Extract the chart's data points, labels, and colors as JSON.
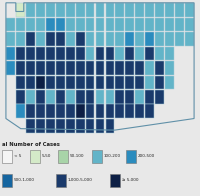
{
  "legend_title": "al Number of Cases",
  "legend_labels": [
    "< 5",
    "5-50",
    "50-100",
    "100-200",
    "200-500",
    "500-1,000",
    "1,000-5,000",
    "≥ 5,000"
  ],
  "legend_colors": [
    "#f5f5f5",
    "#d4eac8",
    "#a8d4a8",
    "#62b4c8",
    "#2b8cbe",
    "#1565a0",
    "#1a3a6b",
    "#0d1f45"
  ],
  "map_bg": "#c8dff0",
  "border_color": "#8ab8cc",
  "fig_bg": "#e8e8e8",
  "figsize": [
    2.0,
    2.0
  ],
  "dpi": 100,
  "town_grid": [
    [
      "#62b4c8",
      "#d4eac8",
      "#62b4c8",
      "#62b4c8",
      "#62b4c8",
      "#62b4c8",
      "#62b4c8",
      "#62b4c8",
      "#62b4c8",
      "#62b4c8",
      "#62b4c8",
      "#62b4c8",
      "#62b4c8",
      "#62b4c8",
      "#62b4c8",
      "#62b4c8",
      "#62b4c8",
      "#62b4c8",
      "#62b4c8"
    ],
    [
      "#62b4c8",
      "#62b4c8",
      "#62b4c8",
      "#62b4c8",
      "#2b8cbe",
      "#2b8cbe",
      "#62b4c8",
      "#62b4c8",
      "#62b4c8",
      "#62b4c8",
      "#62b4c8",
      "#62b4c8",
      "#62b4c8",
      "#62b4c8",
      "#62b4c8",
      "#62b4c8",
      "#62b4c8",
      "#62b4c8",
      "#62b4c8"
    ],
    [
      "#62b4c8",
      "#62b4c8",
      "#1a3a6b",
      "#62b4c8",
      "#1a3a6b",
      "#1a3a6b",
      "#62b4c8",
      "#1a3a6b",
      "#62b4c8",
      "#62b4c8",
      "#62b4c8",
      "#62b4c8",
      "#2b8cbe",
      "#62b4c8",
      "#2b8cbe",
      "#62b4c8",
      "#62b4c8",
      "#62b4c8",
      "#62b4c8"
    ],
    [
      "#2b8cbe",
      "#1a3a6b",
      "#1a3a6b",
      "#1a3a6b",
      "#1a3a6b",
      "#1a3a6b",
      "#1a3a6b",
      "#1a3a6b",
      "#62b4c8",
      "#1a3a6b",
      "#1a3a6b",
      "#62b4c8",
      "#1a3a6b",
      "#62b4c8",
      "#1a3a6b",
      "#62b4c8",
      "#62b4c8",
      "#62b4c8",
      "#62b4c8"
    ],
    [
      "#2b8cbe",
      "#1a3a6b",
      "#1a3a6b",
      "#1a3a6b",
      "#1a3a6b",
      "#1a3a6b",
      "#1a3a6b",
      "#1a3a6b",
      "#1a3a6b",
      "#1a3a6b",
      "#1a3a6b",
      "#1a3a6b",
      "#1a3a6b",
      "#1a3a6b",
      "#62b4c8",
      "#1a3a6b",
      "#62b4c8",
      "#62b4c8",
      "#62b4c8"
    ],
    [
      "#62b4c8",
      "#1a3a6b",
      "#1a3a6b",
      "#0d1f45",
      "#1a3a6b",
      "#1a3a6b",
      "#1a3a6b",
      "#1a3a6b",
      "#1a3a6b",
      "#1a3a6b",
      "#1a3a6b",
      "#1a3a6b",
      "#1a3a6b",
      "#1a3a6b",
      "#62b4c8",
      "#1a3a6b",
      "#62b4c8",
      "#62b4c8",
      "#62b4c8"
    ],
    [
      "#1a3a6b",
      "#1a3a6b",
      "#62b4c8",
      "#1a3a6b",
      "#62b4c8",
      "#1a3a6b",
      "#62b4c8",
      "#1a3a6b",
      "#1a3a6b",
      "#62b4c8",
      "#62b4c8",
      "#1a3a6b",
      "#1a3a6b",
      "#62b4c8",
      "#1a3a6b",
      "#1a3a6b",
      "#62b4c8",
      "#62b4c8",
      "#62b4c8"
    ],
    [
      "#1a3a6b",
      "#2b8cbe",
      "#1a3a6b",
      "#1a3a6b",
      "#1a3a6b",
      "#1a3a6b",
      "#1a3a6b",
      "#0d1f45",
      "#1a3a6b",
      "#1a3a6b",
      "#1a3a6b",
      "#1a3a6b",
      "#1a3a6b",
      "#1a3a6b",
      "#1a3a6b",
      "#1a3a6b",
      "#62b4c8",
      "#62b4c8",
      "#62b4c8"
    ],
    [
      "#1a3a6b",
      "#1a3a6b",
      "#1a3a6b",
      "#1a3a6b",
      "#1a3a6b",
      "#1a3a6b",
      "#1a3a6b",
      "#1a3a6b",
      "#1a3a6b",
      "#1a3a6b",
      "#1a3a6b",
      "#62b4c8",
      "#62b4c8",
      "#62b4c8",
      "#62b4c8",
      "#62b4c8",
      "#62b4c8",
      "#62b4c8",
      "#62b4c8"
    ]
  ],
  "ct_mask": [
    [
      0,
      1,
      1,
      1,
      1,
      1,
      1,
      1,
      1,
      1,
      1,
      1,
      1,
      1,
      1,
      1,
      1,
      1,
      1
    ],
    [
      1,
      1,
      1,
      1,
      1,
      1,
      1,
      1,
      1,
      1,
      1,
      1,
      1,
      1,
      1,
      1,
      1,
      1,
      1
    ],
    [
      1,
      1,
      1,
      1,
      1,
      1,
      1,
      1,
      1,
      1,
      1,
      1,
      1,
      1,
      1,
      1,
      1,
      1,
      1
    ],
    [
      1,
      1,
      1,
      1,
      1,
      1,
      1,
      1,
      1,
      1,
      1,
      1,
      1,
      1,
      1,
      1,
      1,
      0,
      0
    ],
    [
      1,
      1,
      1,
      1,
      1,
      1,
      1,
      1,
      1,
      1,
      1,
      1,
      1,
      1,
      1,
      1,
      1,
      0,
      0
    ],
    [
      0,
      1,
      1,
      1,
      1,
      1,
      1,
      1,
      1,
      1,
      1,
      1,
      1,
      1,
      1,
      1,
      1,
      0,
      0
    ],
    [
      0,
      1,
      1,
      1,
      1,
      1,
      1,
      1,
      1,
      1,
      1,
      1,
      1,
      1,
      1,
      1,
      0,
      0,
      0
    ],
    [
      0,
      1,
      1,
      1,
      1,
      1,
      1,
      1,
      1,
      1,
      1,
      1,
      1,
      1,
      1,
      0,
      0,
      0,
      0
    ],
    [
      0,
      0,
      1,
      1,
      1,
      1,
      1,
      1,
      1,
      1,
      1,
      0,
      0,
      0,
      0,
      0,
      0,
      0,
      0
    ]
  ]
}
